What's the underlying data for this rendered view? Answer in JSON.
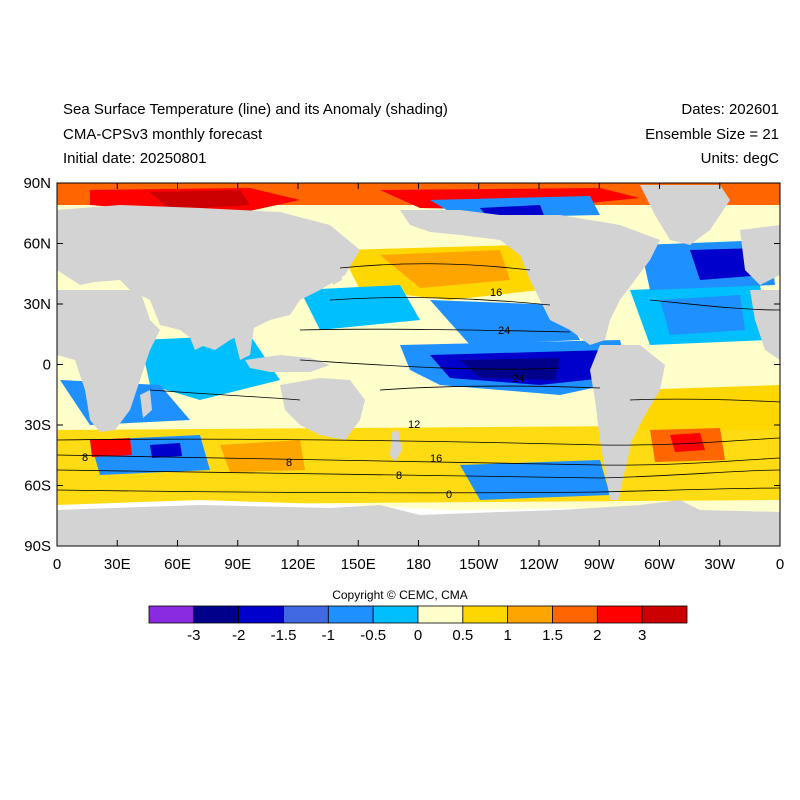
{
  "header": {
    "title": "Sea Surface Temperature (line) and its Anomaly (shading)",
    "subtitle": "CMA-CPSv3 monthly forecast",
    "initial_date": "Initial date: 20250801",
    "dates": "Dates: 202601",
    "ensemble": "Ensemble Size = 21",
    "units": "Units: degC"
  },
  "axes": {
    "lat_labels": [
      "90N",
      "60N",
      "30N",
      "0",
      "30S",
      "60S",
      "90S"
    ],
    "lon_labels": [
      "0",
      "30E",
      "60E",
      "90E",
      "120E",
      "150E",
      "180",
      "150W",
      "120W",
      "90W",
      "60W",
      "30W",
      "0"
    ]
  },
  "contour_labels": [
    "16",
    "24",
    "24",
    "12",
    "8",
    "8",
    "16",
    "8",
    "0"
  ],
  "copyright": "Copyright © CEMC, CMA",
  "colorbar": {
    "labels": [
      "-3",
      "-2",
      "-1.5",
      "-1",
      "-0.5",
      "0",
      "0.5",
      "1",
      "1.5",
      "2",
      "3"
    ],
    "colors": [
      "#8a2be2",
      "#00008b",
      "#0000cd",
      "#4169e1",
      "#1e90ff",
      "#00bfff",
      "#ffffcc",
      "#ffd700",
      "#ffa500",
      "#ff6600",
      "#ff0000",
      "#cc0000"
    ]
  },
  "colors": {
    "land": "#d3d3d3",
    "missing": "#ffffff"
  }
}
